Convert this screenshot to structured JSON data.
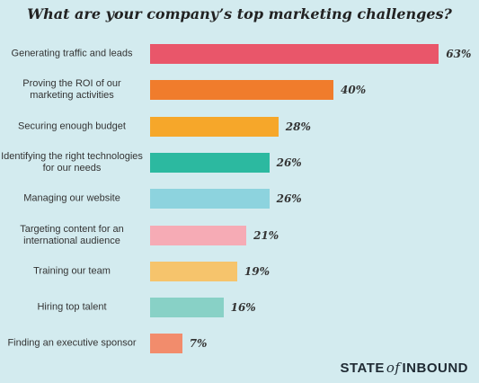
{
  "chart_data": {
    "type": "bar",
    "orientation": "horizontal",
    "title": "What are your company’s top marketing challenges?",
    "categories": [
      "Generating traffic and leads",
      "Proving the ROI of our marketing activities",
      "Securing enough budget",
      "Identifying the right technologies for our needs",
      "Managing our website",
      "Targeting content for an international audience",
      "Training our team",
      "Hiring top talent",
      "Finding an executive sponsor"
    ],
    "values": [
      63,
      40,
      28,
      26,
      26,
      21,
      19,
      16,
      7
    ],
    "value_labels": [
      "63%",
      "40%",
      "28%",
      "26%",
      "26%",
      "21%",
      "19%",
      "16%",
      "7%"
    ],
    "colors": [
      "#e9566a",
      "#f07c2c",
      "#f6a72a",
      "#2cb9a0",
      "#8dd3de",
      "#f6abb5",
      "#f6c46c",
      "#88d1c6",
      "#f28c6c"
    ],
    "brand": {
      "state": "STATE",
      "of": "of",
      "inbound": "INBOUND"
    }
  }
}
